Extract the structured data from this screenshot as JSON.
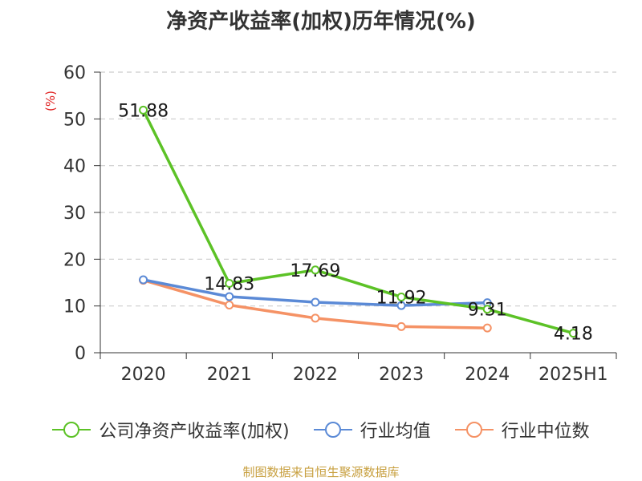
{
  "title": "净资产收益率(加权)历年情况(%)",
  "source": "制图数据来自恒生聚源数据库",
  "chart_data": {
    "type": "line",
    "title": "净资产收益率(加权)历年情况(%)",
    "xlabel": "",
    "ylabel": "(%)",
    "categories": [
      "2020",
      "2021",
      "2022",
      "2023",
      "2024",
      "2025H1"
    ],
    "ylim": [
      0,
      60
    ],
    "yticks": [
      0,
      10,
      20,
      30,
      40,
      50,
      60
    ],
    "grid": true,
    "legend_position": "bottom",
    "series": [
      {
        "name": "公司净资产收益率(加权)",
        "color": "#5cc226",
        "values": [
          51.88,
          14.83,
          17.69,
          11.92,
          9.31,
          4.18
        ],
        "labels": [
          "51.88",
          "14.83",
          "17.69",
          "11.92",
          "9.31",
          "4.18"
        ]
      },
      {
        "name": "行业均值",
        "color": "#5b8ad6",
        "values": [
          15.6,
          12.0,
          10.8,
          10.1,
          10.7,
          null
        ]
      },
      {
        "name": "行业中位数",
        "color": "#f59265",
        "values": [
          15.5,
          10.2,
          7.4,
          5.6,
          5.3,
          null
        ]
      }
    ]
  }
}
